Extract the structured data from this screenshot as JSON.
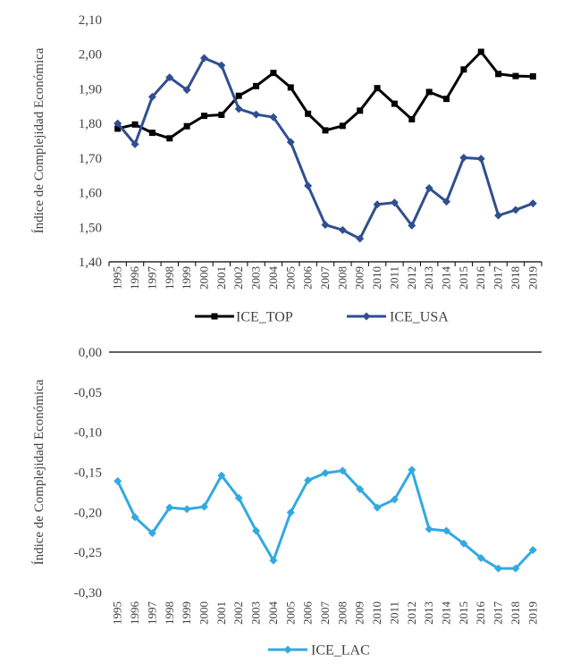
{
  "chart_data": [
    {
      "type": "line",
      "title": "",
      "ylabel": "Índice de Complejidad Económica",
      "xlabel": "",
      "ylim": [
        1.4,
        2.1
      ],
      "yticks": [
        "1,40",
        "1,50",
        "1,60",
        "1,70",
        "1,80",
        "1,90",
        "2,00",
        "2,10"
      ],
      "categories": [
        "1995",
        "1996",
        "1997",
        "1998",
        "1999",
        "2000",
        "2001",
        "2002",
        "2003",
        "2004",
        "2005",
        "2006",
        "2007",
        "2008",
        "2009",
        "2010",
        "2011",
        "2012",
        "2013",
        "2014",
        "2015",
        "2016",
        "2017",
        "2018",
        "2019"
      ],
      "grid": false,
      "legend": "bottom",
      "series": [
        {
          "name": "ICE_TOP",
          "color": "#000000",
          "marker": "square",
          "values": [
            1.785,
            1.797,
            1.773,
            1.757,
            1.792,
            1.822,
            1.825,
            1.88,
            1.908,
            1.946,
            1.904,
            1.828,
            1.78,
            1.793,
            1.837,
            1.902,
            1.857,
            1.812,
            1.891,
            1.871,
            1.956,
            2.007,
            1.943,
            1.937,
            1.936
          ]
        },
        {
          "name": "ICE_USA",
          "color": "#2F4F8F",
          "marker": "diamond",
          "values": [
            1.8,
            1.74,
            1.877,
            1.933,
            1.897,
            1.989,
            1.968,
            1.842,
            1.826,
            1.818,
            1.746,
            1.62,
            1.507,
            1.492,
            1.467,
            1.566,
            1.571,
            1.505,
            1.613,
            1.574,
            1.701,
            1.698,
            1.534,
            1.55,
            1.569
          ]
        }
      ]
    },
    {
      "type": "line",
      "title": "",
      "ylabel": "Índice de Complejidad Económica",
      "xlabel": "",
      "ylim": [
        -0.3,
        0.0
      ],
      "yticks": [
        "-0,30",
        "-0,25",
        "-0,20",
        "-0,15",
        "-0,10",
        "-0,05",
        "0,00"
      ],
      "categories": [
        "1995",
        "1996",
        "1997",
        "1998",
        "1999",
        "2000",
        "2001",
        "2002",
        "2003",
        "2004",
        "2005",
        "2006",
        "2007",
        "2008",
        "2009",
        "2010",
        "2011",
        "2012",
        "2013",
        "2014",
        "2015",
        "2016",
        "2017",
        "2018",
        "2019"
      ],
      "grid": false,
      "legend": "bottom",
      "series": [
        {
          "name": "ICE_LAC",
          "color": "#33A9E0",
          "marker": "diamond",
          "values": [
            -0.161,
            -0.206,
            -0.226,
            -0.194,
            -0.196,
            -0.193,
            -0.154,
            -0.182,
            -0.223,
            -0.26,
            -0.2,
            -0.16,
            -0.151,
            -0.148,
            -0.171,
            -0.194,
            -0.184,
            -0.147,
            -0.221,
            -0.223,
            -0.239,
            -0.257,
            -0.27,
            -0.27,
            -0.247
          ]
        }
      ]
    }
  ]
}
